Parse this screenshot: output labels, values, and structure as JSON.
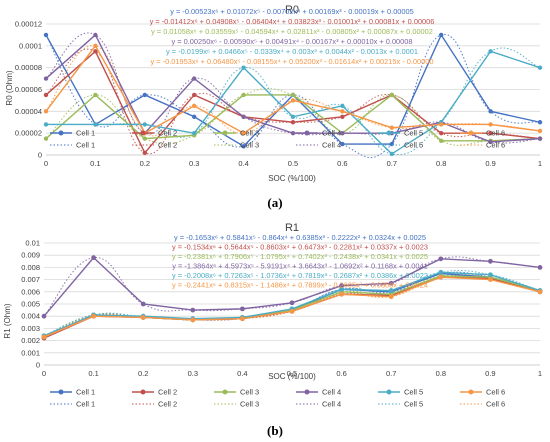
{
  "chart_data": [
    {
      "type": "line",
      "title": "R0",
      "xlabel": "SOC (%/100)",
      "ylabel": "R0 (Ohm)",
      "x": [
        0,
        0.1,
        0.2,
        0.3,
        0.4,
        0.5,
        0.6,
        0.7,
        0.8,
        0.9,
        1
      ],
      "x_ticks": [
        "0",
        "0.1",
        "0.2",
        "0.3",
        "0.4",
        "0.5",
        "0.6",
        "0.7",
        "0.8",
        "0.9",
        "1"
      ],
      "ylim": [
        0,
        0.00012
      ],
      "y_ticks": [
        "0",
        "0.00002",
        "0.00004",
        "0.00006",
        "0.00008",
        "0.0001",
        "0.00012"
      ],
      "grid": true,
      "legend_position": "bottom",
      "series": [
        {
          "name": "Cell 1",
          "color": "#4472C4",
          "values": [
            0.00011,
            2.8e-05,
            5.5e-05,
            3.5e-05,
            8e-06,
            5.5e-05,
            1e-05,
            1e-05,
            0.00011,
            4e-05,
            3e-05
          ]
        },
        {
          "name": "Cell 2",
          "color": "#C0504D",
          "values": [
            5.5e-05,
            9.5e-05,
            2e-06,
            5.5e-05,
            3.5e-05,
            3e-05,
            3.5e-05,
            5.5e-05,
            2e-05,
            2e-05,
            1.5e-05
          ]
        },
        {
          "name": "Cell 3",
          "color": "#9BBB59",
          "values": [
            1.5e-05,
            5.5e-05,
            1.5e-05,
            1.8e-05,
            5.5e-05,
            5.5e-05,
            2e-05,
            5.5e-05,
            1.3e-05,
            1.3e-05,
            1.5e-05
          ]
        },
        {
          "name": "Cell 4",
          "color": "#8064A2",
          "values": [
            7e-05,
            0.00011,
            2e-05,
            7e-05,
            3.5e-05,
            2e-05,
            2e-05,
            2e-05,
            3e-05,
            1.2e-05,
            1.5e-05
          ]
        },
        {
          "name": "Cell 5",
          "color": "#4BACC6",
          "values": [
            2.8e-05,
            2.8e-05,
            2.8e-05,
            2e-05,
            8e-05,
            3.5e-05,
            4.5e-05,
            1e-06,
            3e-05,
            9.5e-05,
            8e-05
          ]
        },
        {
          "name": "Cell 6",
          "color": "#F79646",
          "values": [
            4e-05,
            0.0001,
            2e-05,
            4.5e-05,
            2e-05,
            5e-05,
            4e-05,
            2.5e-05,
            2.8e-05,
            2.8e-05,
            2.2e-05
          ]
        }
      ],
      "trendlines": [
        {
          "name": "Cell 1",
          "color": "#4472C4",
          "equation": "y = -0.00523x⁶ + 0.01072x⁵ - 0.00702x⁴ + 0.00169x³ - 0.00019x + 0.00005"
        },
        {
          "name": "Cell 2",
          "color": "#C0504D",
          "equation": "y = -0.01412x⁶ + 0.04908x⁵ - 0.06404x⁴ + 0.03823x³ - 0.01001x² + 0.00081x + 0.00006"
        },
        {
          "name": "Cell 3",
          "color": "#9BBB59",
          "equation": "y = 0.01058x⁶ + 0.03559x⁵ - 0.04594x⁴ + 0.02811x³ - 0.00805x² + 0.00087x + 0.00002"
        },
        {
          "name": "Cell 4",
          "color": "#8064A2",
          "equation": "y = 0.00250x⁶ - 0.00590x⁵ + 0.00491x⁴ - 0.00167x³ + 0.00010x + 0.00008"
        },
        {
          "name": "Cell 5",
          "color": "#4BACC6",
          "equation": "y = -0.0199x⁶ + 0.0466x⁵ - 0.0339x⁴ + 0.003x³ + 0.0044x² - 0.0013x + 0.0001"
        },
        {
          "name": "Cell 6",
          "color": "#F79646",
          "equation": "y = -0.01953x⁶ + 0.06480x⁵ - 0.08155x⁴ + 0.05200x³ - 0.01614x² + 0.00215x - 0.00000"
        }
      ]
    },
    {
      "type": "line",
      "title": "R1",
      "xlabel": "SOC (%/100)",
      "ylabel": "R1 (Ohm)",
      "x": [
        0,
        0.1,
        0.2,
        0.3,
        0.4,
        0.5,
        0.6,
        0.7,
        0.8,
        0.9,
        1
      ],
      "x_ticks": [
        "0",
        "0.1",
        "0.2",
        "0.3",
        "0.4",
        "0.5",
        "0.6",
        "0.7",
        "0.8",
        "0.9",
        "1"
      ],
      "ylim": [
        0,
        0.01
      ],
      "y_ticks": [
        "0",
        "0.001",
        "0.002",
        "0.003",
        "0.004",
        "0.005",
        "0.006",
        "0.007",
        "0.008",
        "0.009",
        "0.01"
      ],
      "grid": true,
      "legend_position": "bottom",
      "series": [
        {
          "name": "Cell 1",
          "color": "#4472C4",
          "values": [
            0.0023,
            0.0041,
            0.0039,
            0.0037,
            0.0038,
            0.0045,
            0.0062,
            0.006,
            0.0075,
            0.0072,
            0.006
          ]
        },
        {
          "name": "Cell 2",
          "color": "#C0504D",
          "values": [
            0.0022,
            0.004,
            0.0039,
            0.0037,
            0.0038,
            0.0044,
            0.0058,
            0.0057,
            0.0072,
            0.0071,
            0.006
          ]
        },
        {
          "name": "Cell 3",
          "color": "#9BBB59",
          "values": [
            0.0023,
            0.0041,
            0.0039,
            0.0037,
            0.0039,
            0.0045,
            0.006,
            0.0058,
            0.0073,
            0.0072,
            0.0061
          ]
        },
        {
          "name": "Cell 4",
          "color": "#8064A2",
          "values": [
            0.004,
            0.0088,
            0.005,
            0.0045,
            0.0046,
            0.0051,
            0.0065,
            0.0067,
            0.0087,
            0.0085,
            0.008
          ]
        },
        {
          "name": "Cell 5",
          "color": "#4BACC6",
          "values": [
            0.0024,
            0.0041,
            0.004,
            0.0038,
            0.0039,
            0.0046,
            0.0062,
            0.0061,
            0.0076,
            0.0074,
            0.0061
          ]
        },
        {
          "name": "Cell 6",
          "color": "#F79646",
          "values": [
            0.0023,
            0.004,
            0.0039,
            0.0037,
            0.0038,
            0.0044,
            0.0058,
            0.0056,
            0.0072,
            0.007,
            0.006
          ]
        }
      ],
      "trendlines": [
        {
          "name": "Cell 1",
          "color": "#4472C4",
          "equation": "y = -0.1653x⁶ + 0.5841x⁵ - 0.864x⁴ + 0.6385x³ - 0.2222x² + 0.0324x + 0.0025"
        },
        {
          "name": "Cell 2",
          "color": "#C0504D",
          "equation": "y = -0.1534x⁶ + 0.5644x⁵ - 0.8603x⁴ + 0.6473x³ - 0.2281x² + 0.0337x + 0.0023"
        },
        {
          "name": "Cell 3",
          "color": "#9BBB59",
          "equation": "y = -0.2381x⁶ + 0.7906x⁵ - 1.0795x⁴ + 0.7402x³ - 0.2438x² + 0.0341x + 0.0025"
        },
        {
          "name": "Cell 4",
          "color": "#8064A2",
          "equation": "y = -1.3864x⁶ + 4.5973x⁵ - 5.9191x⁴ + 3.6643x³ - 1.0692x² + 0.1168x + 0.0041"
        },
        {
          "name": "Cell 5",
          "color": "#4BACC6",
          "equation": "y = -0.2008x⁶ + 0.7263x⁵ - 1.0736x⁴ + 0.7819x³ - 0.2687x² + 0.0386x + 0.0022"
        },
        {
          "name": "Cell 6",
          "color": "#F79646",
          "equation": "y = -0.2441x⁶ + 0.8315x⁵ - 1.1486x⁴ + 0.7899x³ - 0.2605x² + 0.0368x + 0.0024"
        }
      ]
    }
  ],
  "captions": {
    "a": "(a)",
    "b": "(b)"
  }
}
